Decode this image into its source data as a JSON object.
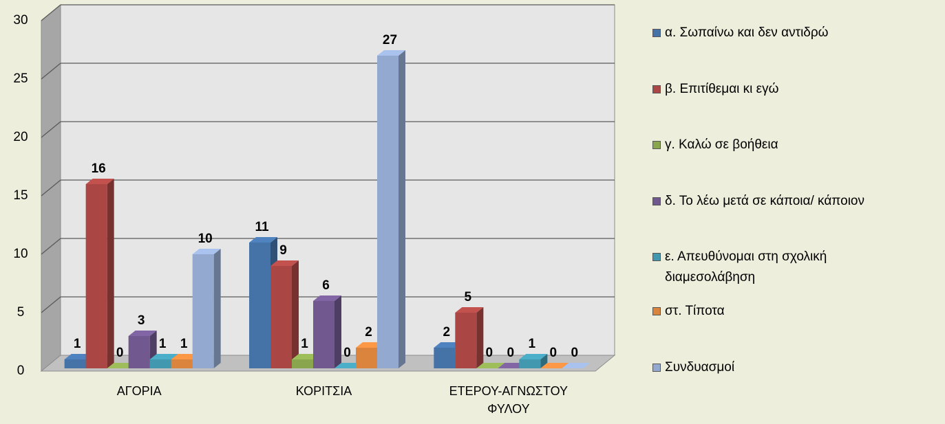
{
  "chart_data": {
    "type": "bar3d",
    "categories": [
      "ΑΓΟΡΙΑ",
      "ΚΟΡΙΤΣΙΑ",
      "ΕΤΕΡΟΥ-ΑΓΝΩΣΤΟΥ ΦΥΛΟΥ"
    ],
    "series": [
      {
        "name": "α. Σωπαίνω και δεν αντιδρώ",
        "color": "#4572a7",
        "values": [
          1,
          11,
          2
        ]
      },
      {
        "name": "β. Επιτίθεμαι κι εγώ",
        "color": "#aa4643",
        "values": [
          16,
          9,
          5
        ]
      },
      {
        "name": "γ. Καλώ σε βοήθεια",
        "color": "#89a54e",
        "values": [
          0,
          1,
          0
        ]
      },
      {
        "name": "δ. Το λέω μετά σε κάποια/ κάποιον",
        "color": "#71588f",
        "values": [
          3,
          6,
          0
        ]
      },
      {
        "name": "ε. Απευθύνομαι στη σχολική διαμεσολάβηση",
        "color": "#4198af",
        "values": [
          1,
          0,
          1
        ]
      },
      {
        "name": "στ. Τίποτα",
        "color": "#db843d",
        "values": [
          1,
          2,
          0
        ]
      },
      {
        "name": "Συνδυασμοί",
        "color": "#93a9cf",
        "values": [
          10,
          27,
          0
        ]
      }
    ],
    "ylim": [
      0,
      30
    ],
    "yticks": [
      0,
      5,
      10,
      15,
      20,
      25,
      30
    ],
    "grid": true,
    "legend": "right"
  }
}
